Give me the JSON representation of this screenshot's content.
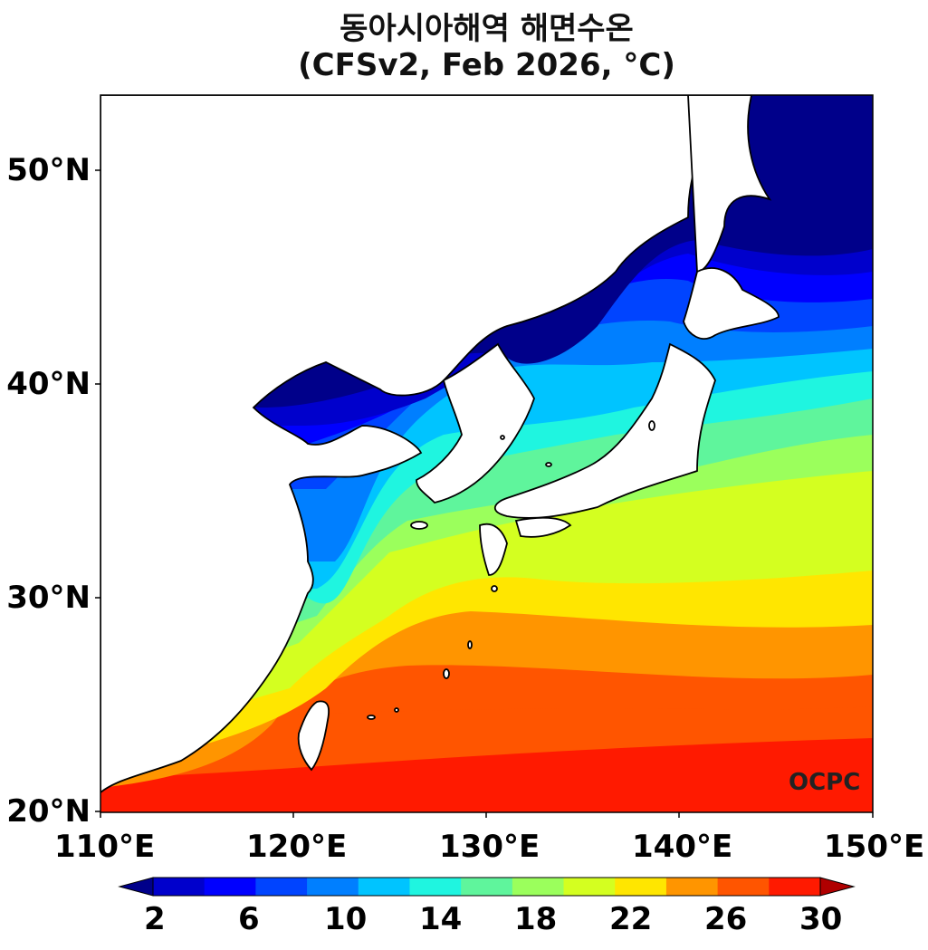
{
  "title": {
    "line1": "동아시아해역 해면수온",
    "line2": "(CFSv2, Feb 2026, °C)"
  },
  "watermark": "OCPC",
  "axes": {
    "lat_labels": [
      "50°N",
      "40°N",
      "30°N",
      "20°N"
    ],
    "lon_labels": [
      "110°E",
      "120°E",
      "130°E",
      "140°E",
      "150°E"
    ]
  },
  "colorbar": {
    "tick_labels": [
      "2",
      "6",
      "10",
      "14",
      "18",
      "22",
      "26",
      "30"
    ],
    "colors": [
      "#00008a",
      "#0000cc",
      "#0000ff",
      "#0044ff",
      "#007fff",
      "#00c4ff",
      "#1ff5e0",
      "#5ff59c",
      "#9bff5c",
      "#d4ff20",
      "#ffe600",
      "#ff9500",
      "#ff5500",
      "#ff1a00",
      "#b00000"
    ],
    "extend": "both"
  },
  "map_colors": {
    "land": "#ffffff",
    "coast": "#000000"
  }
}
